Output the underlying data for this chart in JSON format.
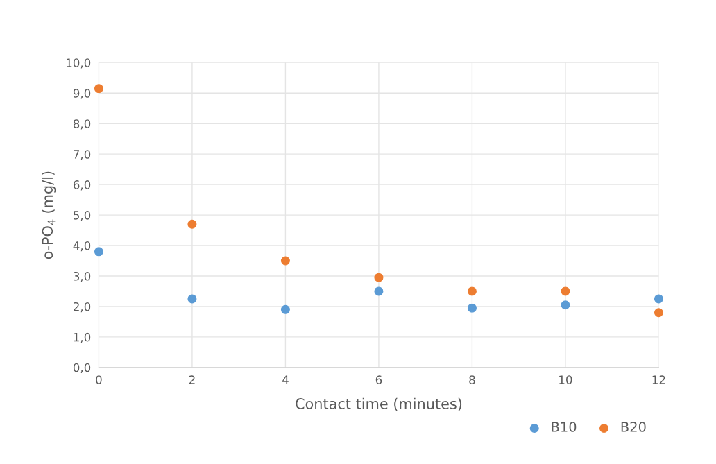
{
  "chart_data": {
    "type": "scatter",
    "xlabel": "Contact time (minutes)",
    "ylabel": "o-PO$_{4}$ (mg/l)",
    "x": [
      0,
      2,
      4,
      6,
      8,
      10,
      12
    ],
    "series": [
      {
        "name": "B10",
        "color": "#5b9bd5",
        "values": [
          3.8,
          2.25,
          1.9,
          2.5,
          1.95,
          2.05,
          2.25
        ]
      },
      {
        "name": "B20",
        "color": "#ed7d31",
        "values": [
          9.15,
          4.7,
          3.5,
          2.95,
          2.5,
          2.5,
          1.8
        ]
      }
    ],
    "xlim": [
      0,
      12
    ],
    "xticks": [
      0,
      2,
      4,
      6,
      8,
      10,
      12
    ],
    "ylim": [
      0,
      10
    ],
    "yticks": [
      {
        "value": 0,
        "label": "0,0"
      },
      {
        "value": 1,
        "label": "1,0"
      },
      {
        "value": 2,
        "label": "2,0"
      },
      {
        "value": 3,
        "label": "3,0"
      },
      {
        "value": 4,
        "label": "4,0"
      },
      {
        "value": 5,
        "label": "5,0"
      },
      {
        "value": 6,
        "label": "6,0"
      },
      {
        "value": 7,
        "label": "7,0"
      },
      {
        "value": 8,
        "label": "8,0"
      },
      {
        "value": 9,
        "label": "9,0"
      },
      {
        "value": 10,
        "label": "10,0"
      }
    ],
    "grid": true,
    "legend": "bottom right"
  }
}
